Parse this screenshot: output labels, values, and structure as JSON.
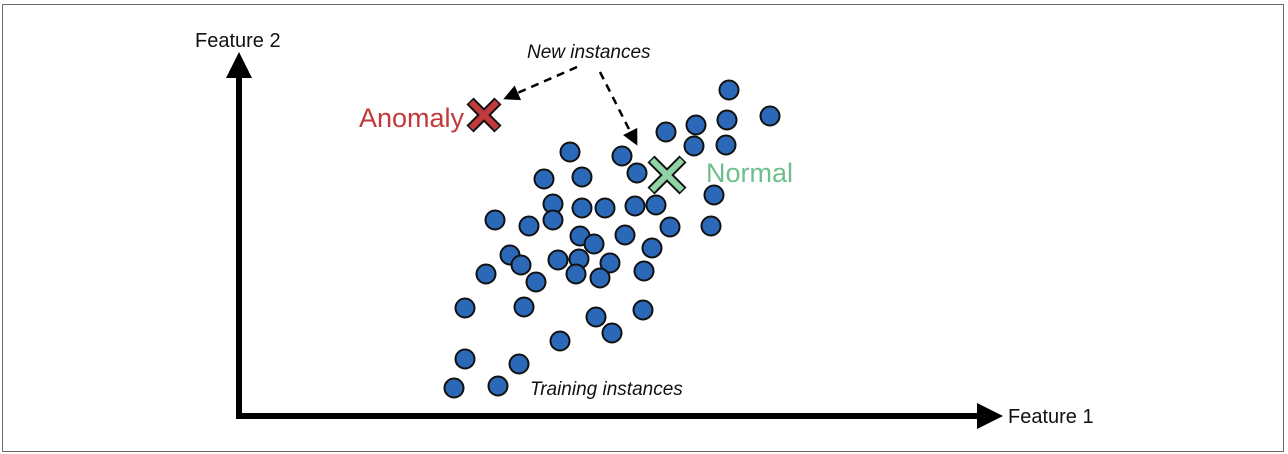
{
  "diagram": {
    "axes": {
      "x_label": "Feature 1",
      "y_label": "Feature 2"
    },
    "annotations": {
      "new_instances": "New instances",
      "training_instances": "Training instances"
    },
    "markers": {
      "anomaly_label": "Anomaly",
      "normal_label": "Normal"
    },
    "colors": {
      "point_fill": "#2b68b7",
      "point_stroke": "#111111",
      "anomaly": "#c0393b",
      "normal": "#6fbf8e",
      "axis": "#000000"
    }
  }
}
